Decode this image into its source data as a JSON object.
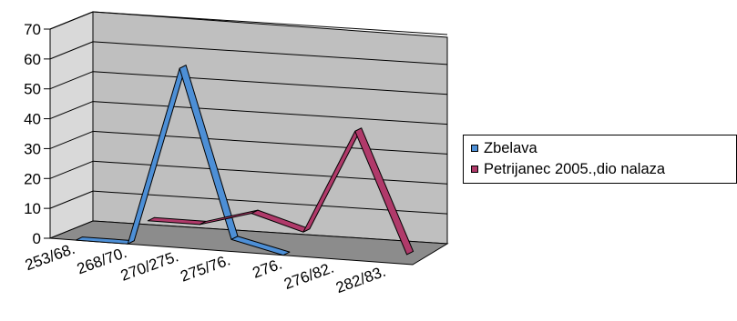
{
  "chart_data": {
    "type": "line",
    "style": "3d-ribbon",
    "categories": [
      "253/68.",
      "268/70.",
      "270/275.",
      "275/76.",
      "276.",
      "276/82.",
      "282/83."
    ],
    "ylim": [
      0,
      70
    ],
    "yticks": [
      "0",
      "10",
      "20",
      "30",
      "40",
      "50",
      "60",
      "70"
    ],
    "grid": true,
    "legend_position": "right",
    "series": [
      {
        "name": "Zbelava",
        "color": "#4d8fd6",
        "values": [
          0,
          0,
          60,
          4,
          0,
          null,
          null
        ]
      },
      {
        "name": "Petrijanec 2005.,dio nalaza",
        "color": "#b03a6a",
        "values": [
          null,
          5,
          5,
          10,
          5,
          40,
          0
        ]
      }
    ]
  }
}
